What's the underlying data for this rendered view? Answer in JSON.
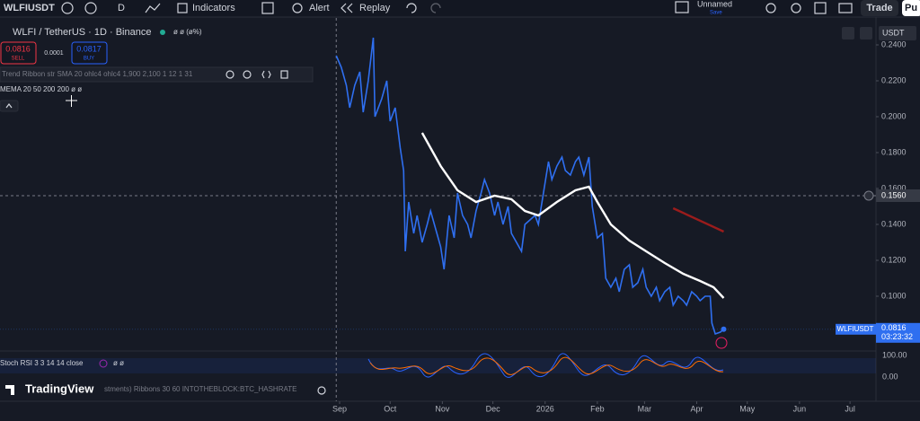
{
  "toolbar": {
    "symbol": "WLFIUSDT",
    "interval": "D",
    "indicators": "Indicators",
    "alert": "Alert",
    "replay": "Replay",
    "layout_name": "Unnamed",
    "save": "Save",
    "trade": "Trade",
    "publish": "Pu"
  },
  "legend": {
    "title": "WLFI / TetherUS · 1D · Binance",
    "ohlc": "ø ø (ø%)",
    "sell_price": "0.0816",
    "sell": "SELL",
    "spread": "0.0001",
    "buy_price": "0.0817",
    "buy": "BUY",
    "indicator_1": "Trend Ribbon str SMA 20 ohlc4 ohlc4 1,900 2,100 1 12 1 31",
    "indicator_2": "MEMA 20 50 200 200  ø ø"
  },
  "currency": "USDT",
  "chart_data": {
    "type": "line",
    "xlim": [
      -201.6,
      318.4
    ],
    "ylim": [
      0.07,
      0.255
    ],
    "xticks": [
      {
        "value": 0,
        "label": "Sep"
      },
      {
        "value": 30,
        "label": "Oct"
      },
      {
        "value": 61,
        "label": "Nov"
      },
      {
        "value": 91,
        "label": "Dec"
      },
      {
        "value": 122,
        "label": "2026"
      },
      {
        "value": 153,
        "label": "Feb"
      },
      {
        "value": 181,
        "label": "Mar"
      },
      {
        "value": 212,
        "label": "Apr"
      },
      {
        "value": 242,
        "label": "May"
      },
      {
        "value": 273,
        "label": "Jun"
      },
      {
        "value": 303,
        "label": "Jul"
      }
    ],
    "yticks": [
      {
        "value": 0.24,
        "label": "0.2400"
      },
      {
        "value": 0.22,
        "label": "0.2200"
      },
      {
        "value": 0.2,
        "label": "0.2000"
      },
      {
        "value": 0.18,
        "label": "0.1800"
      },
      {
        "value": 0.16,
        "label": "0.1600"
      },
      {
        "value": 0.14,
        "label": "0.1400"
      },
      {
        "value": 0.12,
        "label": "0.1200"
      },
      {
        "value": 0.1,
        "label": "0.1000"
      }
    ],
    "series": [
      {
        "color": "#2f6ff0",
        "x": [
          -2,
          1,
          4,
          6,
          9,
          12,
          14,
          17,
          20,
          21,
          25,
          28,
          30,
          33,
          36,
          38,
          39,
          41,
          44,
          46,
          49,
          52,
          54,
          57,
          60,
          62,
          65,
          68,
          70,
          73,
          76,
          78,
          81,
          84,
          86,
          89,
          92,
          94,
          97,
          100,
          102,
          105,
          108,
          110,
          113,
          116,
          118,
          121,
          124,
          126,
          129,
          132,
          134,
          137,
          140,
          142,
          145,
          148,
          150,
          153,
          156,
          158,
          161,
          164,
          166,
          169,
          172,
          174,
          177,
          180,
          182,
          185,
          188,
          190,
          193,
          196,
          198,
          201,
          204,
          206,
          209,
          212,
          214,
          217,
          220,
          221,
          223,
          226,
          228
        ],
        "values": [
          0.234,
          0.2275,
          0.2175,
          0.205,
          0.2175,
          0.225,
          0.2025,
          0.22,
          0.244,
          0.2,
          0.21,
          0.22,
          0.1975,
          0.205,
          0.1825,
          0.17,
          0.125,
          0.1525,
          0.135,
          0.145,
          0.13,
          0.14,
          0.1475,
          0.1375,
          0.1275,
          0.115,
          0.145,
          0.1325,
          0.1575,
          0.145,
          0.14,
          0.1325,
          0.1475,
          0.1575,
          0.165,
          0.1575,
          0.145,
          0.1525,
          0.14,
          0.15,
          0.135,
          0.13,
          0.125,
          0.14,
          0.1425,
          0.145,
          0.14,
          0.1575,
          0.175,
          0.165,
          0.1725,
          0.1775,
          0.17,
          0.1675,
          0.175,
          0.1775,
          0.1675,
          0.1775,
          0.15,
          0.1325,
          0.135,
          0.11,
          0.105,
          0.11,
          0.1025,
          0.115,
          0.1175,
          0.105,
          0.1075,
          0.115,
          0.105,
          0.1,
          0.105,
          0.0975,
          0.1025,
          0.105,
          0.095,
          0.1,
          0.0975,
          0.095,
          0.1025,
          0.1,
          0.0975,
          0.1,
          0.1,
          0.085,
          0.079,
          0.08,
          0.0816
        ]
      },
      {
        "color": "#ffffff",
        "x": [
          49,
          60,
          70,
          81,
          92,
          102,
          110,
          118,
          129,
          140,
          148,
          153,
          161,
          172,
          182,
          193,
          204,
          214,
          222,
          228
        ],
        "values": [
          0.191,
          0.1725,
          0.159,
          0.1525,
          0.156,
          0.154,
          0.1475,
          0.145,
          0.1525,
          0.159,
          0.161,
          0.1525,
          0.14,
          0.131,
          0.125,
          0.1185,
          0.1125,
          0.1085,
          0.105,
          0.099
        ]
      },
      {
        "color": "#9b1c1c",
        "x": [
          198,
          228
        ],
        "values": [
          0.149,
          0.136
        ]
      }
    ],
    "crosshair": {
      "x": -2,
      "value": 0.156,
      "label": "0.1560"
    },
    "last_price": {
      "symbol": "WLFIUSDT",
      "value": 0.0816,
      "label": "0.0816",
      "countdown": "03:23:32"
    }
  },
  "stoch": {
    "title": "Stoch RSI 3 3 14 14 close",
    "values": "ø ø",
    "upper": "100.00",
    "lower": "0.00"
  },
  "footer": {
    "brand": "TradingView",
    "ribbon": "stments) Ribbons 30 60 INTOTHEBLOCK:BTC_HASHRATE"
  }
}
